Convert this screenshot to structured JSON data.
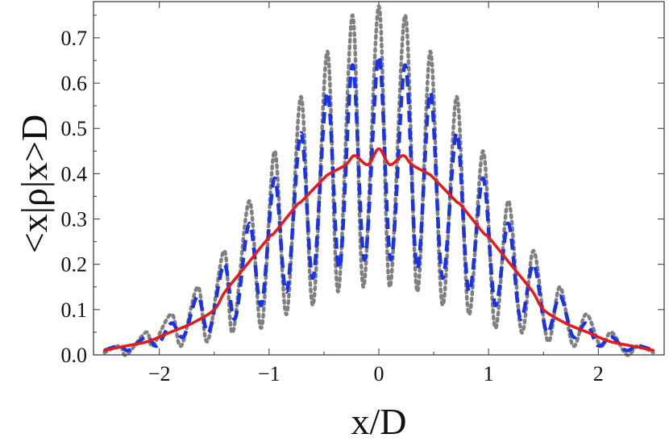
{
  "chart_data": {
    "type": "line",
    "title": "",
    "xlabel": "x/D",
    "ylabel": "<x|ρ|x>D",
    "xlim": [
      -2.6,
      2.6
    ],
    "ylim": [
      0.0,
      0.78
    ],
    "grid": false,
    "legend": "none",
    "x_ticks": [
      "-2",
      "-1",
      "0",
      "1",
      "2"
    ],
    "y_ticks": [
      "0.0",
      "0.1",
      "0.2",
      "0.3",
      "0.4",
      "0.5",
      "0.6",
      "0.7"
    ],
    "series": [
      {
        "style": "dotted",
        "color": "#808080",
        "points": [
          [
            -2.5,
            0.005
          ],
          [
            -2.36,
            0.02
          ],
          [
            -2.3,
            0.0
          ],
          [
            -2.12,
            0.05
          ],
          [
            -2.06,
            0.02
          ],
          [
            -1.89,
            0.09
          ],
          [
            -1.8,
            0.02
          ],
          [
            -1.65,
            0.15
          ],
          [
            -1.56,
            0.03
          ],
          [
            -1.41,
            0.23
          ],
          [
            -1.33,
            0.05
          ],
          [
            -1.18,
            0.34
          ],
          [
            -1.07,
            0.06
          ],
          [
            -0.95,
            0.45
          ],
          [
            -0.84,
            0.09
          ],
          [
            -0.71,
            0.57
          ],
          [
            -0.6,
            0.11
          ],
          [
            -0.47,
            0.67
          ],
          [
            -0.37,
            0.14
          ],
          [
            -0.24,
            0.75
          ],
          [
            -0.14,
            0.15
          ],
          [
            0.0,
            0.77
          ],
          [
            0.1,
            0.15
          ],
          [
            0.24,
            0.75
          ],
          [
            0.35,
            0.14
          ],
          [
            0.47,
            0.67
          ],
          [
            0.58,
            0.11
          ],
          [
            0.71,
            0.57
          ],
          [
            0.82,
            0.09
          ],
          [
            0.95,
            0.45
          ],
          [
            1.06,
            0.06
          ],
          [
            1.18,
            0.34
          ],
          [
            1.3,
            0.05
          ],
          [
            1.41,
            0.23
          ],
          [
            1.54,
            0.03
          ],
          [
            1.65,
            0.15
          ],
          [
            1.77,
            0.02
          ],
          [
            1.89,
            0.09
          ],
          [
            2.02,
            0.02
          ],
          [
            2.12,
            0.05
          ],
          [
            2.26,
            0.0
          ],
          [
            2.36,
            0.02
          ],
          [
            2.5,
            0.005
          ]
        ]
      },
      {
        "style": "dashed",
        "color": "#1a33e6",
        "points": [
          [
            -2.5,
            0.01
          ],
          [
            -2.36,
            0.02
          ],
          [
            -2.28,
            0.01
          ],
          [
            -2.12,
            0.04
          ],
          [
            -2.02,
            0.02
          ],
          [
            -1.89,
            0.07
          ],
          [
            -1.78,
            0.04
          ],
          [
            -1.65,
            0.13
          ],
          [
            -1.55,
            0.05
          ],
          [
            -1.41,
            0.2
          ],
          [
            -1.31,
            0.08
          ],
          [
            -1.18,
            0.29
          ],
          [
            -1.07,
            0.11
          ],
          [
            -0.95,
            0.39
          ],
          [
            -0.84,
            0.14
          ],
          [
            -0.71,
            0.49
          ],
          [
            -0.6,
            0.17
          ],
          [
            -0.47,
            0.58
          ],
          [
            -0.36,
            0.19
          ],
          [
            -0.24,
            0.64
          ],
          [
            -0.13,
            0.21
          ],
          [
            0.0,
            0.66
          ],
          [
            0.11,
            0.21
          ],
          [
            0.24,
            0.64
          ],
          [
            0.35,
            0.19
          ],
          [
            0.47,
            0.58
          ],
          [
            0.58,
            0.17
          ],
          [
            0.71,
            0.49
          ],
          [
            0.82,
            0.14
          ],
          [
            0.95,
            0.39
          ],
          [
            1.06,
            0.11
          ],
          [
            1.18,
            0.29
          ],
          [
            1.29,
            0.08
          ],
          [
            1.41,
            0.2
          ],
          [
            1.53,
            0.05
          ],
          [
            1.65,
            0.13
          ],
          [
            1.77,
            0.04
          ],
          [
            1.89,
            0.07
          ],
          [
            2.0,
            0.02
          ],
          [
            2.12,
            0.04
          ],
          [
            2.25,
            0.01
          ],
          [
            2.36,
            0.02
          ],
          [
            2.5,
            0.01
          ]
        ]
      },
      {
        "style": "solid",
        "color": "#e61a1a",
        "points": [
          [
            -2.5,
            0.01
          ],
          [
            -2.3,
            0.02
          ],
          [
            -2.1,
            0.03
          ],
          [
            -1.9,
            0.05
          ],
          [
            -1.7,
            0.07
          ],
          [
            -1.5,
            0.1
          ],
          [
            -1.4,
            0.14
          ],
          [
            -1.2,
            0.2
          ],
          [
            -1.0,
            0.26
          ],
          [
            -0.95,
            0.27
          ],
          [
            -0.75,
            0.33
          ],
          [
            -0.7,
            0.34
          ],
          [
            -0.5,
            0.39
          ],
          [
            -0.45,
            0.4
          ],
          [
            -0.3,
            0.42
          ],
          [
            -0.22,
            0.44
          ],
          [
            -0.1,
            0.42
          ],
          [
            0.0,
            0.455
          ],
          [
            0.1,
            0.42
          ],
          [
            0.22,
            0.44
          ],
          [
            0.3,
            0.42
          ],
          [
            0.45,
            0.4
          ],
          [
            0.5,
            0.39
          ],
          [
            0.7,
            0.34
          ],
          [
            0.75,
            0.33
          ],
          [
            0.95,
            0.27
          ],
          [
            1.0,
            0.26
          ],
          [
            1.2,
            0.2
          ],
          [
            1.4,
            0.14
          ],
          [
            1.5,
            0.1
          ],
          [
            1.7,
            0.07
          ],
          [
            1.9,
            0.05
          ],
          [
            2.1,
            0.03
          ],
          [
            2.3,
            0.02
          ],
          [
            2.5,
            0.01
          ]
        ]
      }
    ]
  }
}
